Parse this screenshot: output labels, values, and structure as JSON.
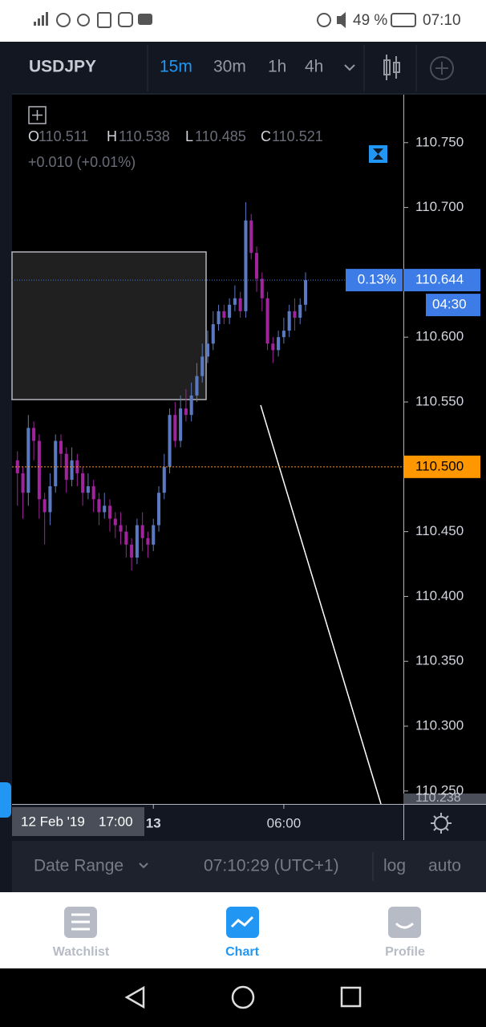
{
  "status_bar": {
    "battery": "49 %",
    "time": "07:10"
  },
  "toolbar": {
    "symbol": "USDJPY",
    "intervals": [
      "15m",
      "30m",
      "1h",
      "4h"
    ]
  },
  "legend": {
    "o_label": "O",
    "o_value": "110.511",
    "h_label": "H",
    "h_value": "110.538",
    "l_label": "L",
    "l_value": "110.485",
    "c_label": "C",
    "c_value": "110.521",
    "change": "+0.010 (+0.01%)"
  },
  "chart_data": {
    "type": "candlestick",
    "x": [
      0,
      1,
      2,
      3,
      4,
      5,
      6,
      7,
      8,
      9,
      10,
      11,
      12,
      13,
      14,
      15,
      16,
      17,
      18,
      19,
      20,
      21,
      22,
      23,
      24,
      25,
      26,
      27,
      28,
      29,
      30,
      31,
      32,
      33,
      34,
      35,
      36,
      37,
      38,
      39,
      40,
      41,
      42,
      43,
      44,
      45,
      46,
      47,
      48,
      49,
      50,
      51,
      52,
      53
    ],
    "open": [
      110.505,
      110.495,
      110.48,
      110.53,
      110.52,
      110.475,
      110.465,
      110.485,
      110.52,
      110.51,
      110.49,
      110.505,
      110.495,
      110.48,
      110.485,
      110.475,
      110.465,
      110.47,
      110.46,
      110.455,
      110.45,
      110.44,
      110.43,
      110.455,
      110.445,
      110.44,
      110.455,
      110.48,
      110.5,
      110.54,
      110.52,
      110.545,
      110.54,
      110.555,
      110.57,
      110.585,
      110.595,
      110.61,
      110.62,
      110.615,
      110.625,
      110.63,
      110.62,
      110.69,
      110.665,
      110.645,
      110.63,
      110.595,
      110.59,
      110.6,
      110.605,
      110.62,
      110.615,
      110.625
    ],
    "high": [
      110.512,
      110.5,
      110.54,
      110.535,
      110.525,
      110.48,
      110.495,
      110.525,
      110.525,
      110.515,
      110.515,
      110.51,
      110.5,
      110.495,
      110.49,
      110.48,
      110.48,
      110.475,
      110.465,
      110.465,
      110.455,
      110.445,
      110.46,
      110.465,
      110.45,
      110.46,
      110.485,
      110.51,
      110.545,
      110.55,
      110.555,
      110.56,
      110.565,
      110.58,
      110.595,
      110.605,
      110.62,
      110.625,
      110.625,
      110.63,
      110.64,
      110.635,
      110.704,
      110.695,
      110.67,
      110.65,
      110.635,
      110.6,
      110.605,
      110.615,
      110.625,
      110.63,
      110.63,
      110.65
    ],
    "low": [
      110.47,
      110.46,
      110.47,
      110.505,
      110.46,
      110.44,
      110.455,
      110.48,
      110.5,
      110.48,
      110.485,
      110.485,
      110.47,
      110.475,
      110.465,
      110.455,
      110.46,
      110.45,
      110.445,
      110.44,
      110.43,
      110.42,
      110.425,
      110.435,
      110.43,
      110.435,
      110.45,
      110.475,
      110.495,
      110.515,
      110.515,
      110.535,
      110.535,
      110.55,
      110.565,
      110.58,
      110.59,
      110.605,
      110.61,
      110.61,
      110.62,
      110.615,
      110.615,
      110.66,
      110.635,
      110.62,
      110.59,
      110.58,
      110.585,
      110.595,
      110.6,
      110.605,
      110.61,
      110.62
    ],
    "close": [
      110.495,
      110.48,
      110.53,
      110.52,
      110.475,
      110.465,
      110.485,
      110.52,
      110.51,
      110.49,
      110.505,
      110.495,
      110.48,
      110.485,
      110.475,
      110.465,
      110.47,
      110.46,
      110.455,
      110.45,
      110.44,
      110.43,
      110.455,
      110.445,
      110.44,
      110.455,
      110.48,
      110.5,
      110.54,
      110.52,
      110.545,
      110.54,
      110.555,
      110.57,
      110.585,
      110.595,
      110.61,
      110.62,
      110.615,
      110.625,
      110.63,
      110.62,
      110.69,
      110.665,
      110.645,
      110.63,
      110.595,
      110.59,
      110.6,
      110.605,
      110.62,
      110.615,
      110.625,
      110.644
    ],
    "up_color": "#5a79c0",
    "down_color": "#a0249c",
    "xlim": [
      -1,
      71
    ],
    "xticks": [
      {
        "value": 25,
        "label": "13"
      },
      {
        "value": 49,
        "label": "06:00"
      }
    ],
    "ylim": [
      110.24,
      110.787
    ],
    "yticks": [
      {
        "value": 110.75,
        "label": "110.750"
      },
      {
        "value": 110.7,
        "label": "110.700"
      },
      {
        "value": 110.6,
        "label": "110.600"
      },
      {
        "value": 110.55,
        "label": "110.550"
      },
      {
        "value": 110.45,
        "label": "110.450"
      },
      {
        "value": 110.4,
        "label": "110.400"
      },
      {
        "value": 110.35,
        "label": "110.350"
      },
      {
        "value": 110.3,
        "label": "110.300"
      },
      {
        "value": 110.25,
        "label": "110.250"
      }
    ],
    "last_price": {
      "value": 110.644,
      "label": "110.644",
      "change": "0.13%",
      "countdown": "04:30",
      "color": "#3d7be6"
    },
    "alert_line": {
      "value": 110.5,
      "label": "110.500",
      "color": "#ff9800"
    },
    "crosshair": {
      "date": "12 Feb '19",
      "time": "17:00"
    }
  },
  "bottom_bar": {
    "date_range": "Date Range",
    "clock": "07:10:29 (UTC+1)",
    "log": "log",
    "auto": "auto"
  },
  "nav": {
    "watchlist": "Watchlist",
    "chart": "Chart",
    "profile": "Profile"
  }
}
